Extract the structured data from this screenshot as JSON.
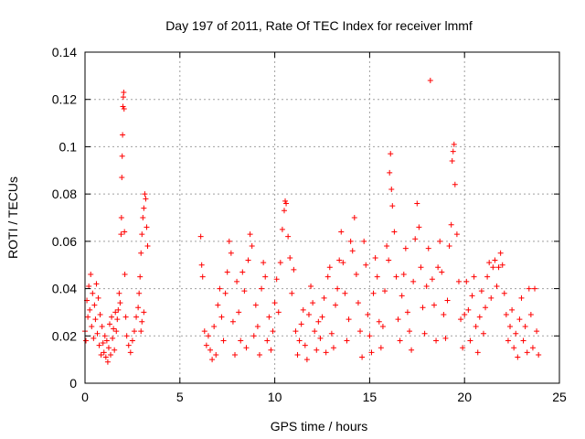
{
  "chart_data": {
    "type": "scatter",
    "title": "Day 197 of 2011, Rate Of TEC Index for receiver lmmf",
    "xlabel": "GPS time / hours",
    "ylabel": "ROTI / TECUs",
    "xlim": [
      0,
      25
    ],
    "ylim": [
      0,
      0.14
    ],
    "xticks": [
      "0",
      "5",
      "10",
      "15",
      "20",
      "25"
    ],
    "yticks": [
      "0",
      "0.02",
      "0.04",
      "0.06",
      "0.08",
      "0.1",
      "0.12",
      "0.14"
    ],
    "grid": true,
    "marker": "+",
    "color": "#ff0000",
    "series": [
      {
        "points": [
          [
            0.0,
            0.022
          ],
          [
            0.05,
            0.018
          ],
          [
            0.1,
            0.035
          ],
          [
            0.15,
            0.028
          ],
          [
            0.2,
            0.041
          ],
          [
            0.25,
            0.031
          ],
          [
            0.3,
            0.046
          ],
          [
            0.35,
            0.024
          ],
          [
            0.4,
            0.038
          ],
          [
            0.45,
            0.019
          ],
          [
            0.5,
            0.033
          ],
          [
            0.55,
            0.027
          ],
          [
            0.6,
            0.042
          ],
          [
            0.65,
            0.021
          ],
          [
            0.7,
            0.036
          ],
          [
            0.75,
            0.016
          ],
          [
            0.8,
            0.029
          ],
          [
            0.85,
            0.012
          ],
          [
            0.9,
            0.024
          ],
          [
            0.95,
            0.017
          ],
          [
            1.0,
            0.013
          ],
          [
            1.05,
            0.02
          ],
          [
            1.1,
            0.011
          ],
          [
            1.15,
            0.018
          ],
          [
            1.2,
            0.009
          ],
          [
            1.25,
            0.015
          ],
          [
            1.3,
            0.025
          ],
          [
            1.35,
            0.012
          ],
          [
            1.4,
            0.028
          ],
          [
            1.45,
            0.019
          ],
          [
            1.5,
            0.023
          ],
          [
            1.55,
            0.014
          ],
          [
            1.6,
            0.03
          ],
          [
            1.65,
            0.022
          ],
          [
            1.7,
            0.027
          ],
          [
            1.75,
            0.031
          ],
          [
            1.8,
            0.038
          ],
          [
            1.85,
            0.034
          ],
          [
            1.9,
            0.063
          ],
          [
            1.92,
            0.07
          ],
          [
            1.94,
            0.087
          ],
          [
            1.96,
            0.096
          ],
          [
            1.98,
            0.105
          ],
          [
            2.0,
            0.117
          ],
          [
            2.02,
            0.121
          ],
          [
            2.04,
            0.123
          ],
          [
            2.06,
            0.116
          ],
          [
            2.08,
            0.064
          ],
          [
            2.1,
            0.046
          ],
          [
            2.15,
            0.028
          ],
          [
            2.2,
            0.02
          ],
          [
            2.3,
            0.016
          ],
          [
            2.4,
            0.013
          ],
          [
            2.5,
            0.018
          ],
          [
            2.6,
            0.022
          ],
          [
            2.7,
            0.028
          ],
          [
            2.8,
            0.032
          ],
          [
            2.85,
            0.038
          ],
          [
            2.9,
            0.045
          ],
          [
            2.95,
            0.055
          ],
          [
            3.0,
            0.063
          ],
          [
            3.05,
            0.07
          ],
          [
            3.1,
            0.074
          ],
          [
            3.15,
            0.08
          ],
          [
            3.2,
            0.078
          ],
          [
            3.25,
            0.066
          ],
          [
            3.3,
            0.058
          ],
          [
            3.0,
            0.026
          ],
          [
            3.1,
            0.03
          ],
          [
            2.95,
            0.022
          ],
          [
            6.1,
            0.062
          ],
          [
            6.15,
            0.05
          ],
          [
            6.2,
            0.045
          ],
          [
            6.3,
            0.022
          ],
          [
            6.4,
            0.016
          ],
          [
            6.5,
            0.02
          ],
          [
            6.6,
            0.014
          ],
          [
            6.7,
            0.01
          ],
          [
            6.8,
            0.024
          ],
          [
            6.9,
            0.012
          ],
          [
            7.0,
            0.033
          ],
          [
            7.1,
            0.04
          ],
          [
            7.2,
            0.028
          ],
          [
            7.3,
            0.018
          ],
          [
            7.4,
            0.038
          ],
          [
            7.5,
            0.047
          ],
          [
            7.6,
            0.06
          ],
          [
            7.7,
            0.055
          ],
          [
            7.8,
            0.026
          ],
          [
            7.9,
            0.012
          ],
          [
            8.0,
            0.043
          ],
          [
            8.1,
            0.03
          ],
          [
            8.2,
            0.018
          ],
          [
            8.3,
            0.047
          ],
          [
            8.4,
            0.039
          ],
          [
            8.5,
            0.015
          ],
          [
            8.6,
            0.052
          ],
          [
            8.7,
            0.063
          ],
          [
            8.8,
            0.058
          ],
          [
            8.9,
            0.02
          ],
          [
            9.0,
            0.033
          ],
          [
            9.1,
            0.024
          ],
          [
            9.2,
            0.012
          ],
          [
            9.3,
            0.04
          ],
          [
            9.4,
            0.051
          ],
          [
            9.5,
            0.045
          ],
          [
            9.6,
            0.018
          ],
          [
            9.7,
            0.028
          ],
          [
            9.8,
            0.014
          ],
          [
            9.9,
            0.022
          ],
          [
            10.0,
            0.034
          ],
          [
            10.1,
            0.044
          ],
          [
            10.2,
            0.03
          ],
          [
            10.3,
            0.051
          ],
          [
            10.4,
            0.065
          ],
          [
            10.5,
            0.073
          ],
          [
            10.55,
            0.077
          ],
          [
            10.6,
            0.076
          ],
          [
            10.7,
            0.062
          ],
          [
            10.8,
            0.053
          ],
          [
            10.9,
            0.038
          ],
          [
            11.0,
            0.048
          ],
          [
            11.1,
            0.022
          ],
          [
            11.2,
            0.012
          ],
          [
            11.3,
            0.018
          ],
          [
            11.4,
            0.025
          ],
          [
            11.5,
            0.031
          ],
          [
            11.6,
            0.016
          ],
          [
            11.7,
            0.01
          ],
          [
            11.8,
            0.029
          ],
          [
            11.9,
            0.041
          ],
          [
            12.0,
            0.034
          ],
          [
            12.1,
            0.022
          ],
          [
            12.2,
            0.014
          ],
          [
            12.3,
            0.026
          ],
          [
            12.4,
            0.019
          ],
          [
            12.5,
            0.028
          ],
          [
            12.6,
            0.036
          ],
          [
            12.7,
            0.013
          ],
          [
            12.8,
            0.045
          ],
          [
            12.9,
            0.049
          ],
          [
            13.0,
            0.021
          ],
          [
            13.1,
            0.015
          ],
          [
            13.2,
            0.033
          ],
          [
            13.3,
            0.04
          ],
          [
            13.4,
            0.052
          ],
          [
            13.5,
            0.064
          ],
          [
            13.6,
            0.051
          ],
          [
            13.7,
            0.038
          ],
          [
            13.8,
            0.018
          ],
          [
            13.9,
            0.027
          ],
          [
            14.0,
            0.06
          ],
          [
            14.1,
            0.056
          ],
          [
            14.2,
            0.07
          ],
          [
            14.3,
            0.046
          ],
          [
            14.4,
            0.034
          ],
          [
            14.5,
            0.022
          ],
          [
            14.6,
            0.011
          ],
          [
            14.7,
            0.06
          ],
          [
            14.8,
            0.05
          ],
          [
            14.9,
            0.029
          ],
          [
            15.0,
            0.02
          ],
          [
            15.1,
            0.013
          ],
          [
            15.2,
            0.038
          ],
          [
            15.3,
            0.053
          ],
          [
            15.4,
            0.045
          ],
          [
            15.5,
            0.026
          ],
          [
            15.6,
            0.015
          ],
          [
            15.7,
            0.024
          ],
          [
            15.8,
            0.039
          ],
          [
            15.9,
            0.058
          ],
          [
            16.0,
            0.052
          ],
          [
            16.05,
            0.089
          ],
          [
            16.1,
            0.097
          ],
          [
            16.15,
            0.082
          ],
          [
            16.2,
            0.075
          ],
          [
            16.3,
            0.064
          ],
          [
            16.4,
            0.045
          ],
          [
            16.5,
            0.027
          ],
          [
            16.6,
            0.018
          ],
          [
            16.7,
            0.037
          ],
          [
            16.8,
            0.046
          ],
          [
            16.9,
            0.057
          ],
          [
            17.0,
            0.03
          ],
          [
            17.1,
            0.022
          ],
          [
            17.2,
            0.014
          ],
          [
            17.3,
            0.043
          ],
          [
            17.4,
            0.061
          ],
          [
            17.5,
            0.076
          ],
          [
            17.6,
            0.066
          ],
          [
            17.7,
            0.049
          ],
          [
            17.8,
            0.032
          ],
          [
            17.9,
            0.021
          ],
          [
            18.0,
            0.041
          ],
          [
            18.1,
            0.057
          ],
          [
            18.2,
            0.128
          ],
          [
            18.3,
            0.044
          ],
          [
            18.4,
            0.033
          ],
          [
            18.5,
            0.018
          ],
          [
            18.6,
            0.049
          ],
          [
            18.7,
            0.06
          ],
          [
            18.8,
            0.047
          ],
          [
            18.9,
            0.029
          ],
          [
            19.0,
            0.019
          ],
          [
            19.1,
            0.035
          ],
          [
            19.2,
            0.058
          ],
          [
            19.3,
            0.067
          ],
          [
            19.35,
            0.094
          ],
          [
            19.4,
            0.098
          ],
          [
            19.45,
            0.101
          ],
          [
            19.5,
            0.084
          ],
          [
            19.6,
            0.063
          ],
          [
            19.7,
            0.043
          ],
          [
            19.8,
            0.027
          ],
          [
            19.9,
            0.015
          ],
          [
            20.0,
            0.029
          ],
          [
            20.1,
            0.043
          ],
          [
            20.2,
            0.031
          ],
          [
            20.3,
            0.018
          ],
          [
            20.4,
            0.037
          ],
          [
            20.5,
            0.045
          ],
          [
            20.6,
            0.024
          ],
          [
            20.7,
            0.013
          ],
          [
            20.8,
            0.028
          ],
          [
            20.9,
            0.039
          ],
          [
            21.0,
            0.021
          ],
          [
            21.1,
            0.032
          ],
          [
            21.2,
            0.045
          ],
          [
            21.3,
            0.051
          ],
          [
            21.4,
            0.036
          ],
          [
            21.5,
            0.049
          ],
          [
            21.6,
            0.052
          ],
          [
            21.7,
            0.041
          ],
          [
            21.8,
            0.049
          ],
          [
            21.9,
            0.055
          ],
          [
            22.0,
            0.05
          ],
          [
            22.1,
            0.038
          ],
          [
            22.2,
            0.029
          ],
          [
            22.3,
            0.018
          ],
          [
            22.4,
            0.024
          ],
          [
            22.5,
            0.031
          ],
          [
            22.6,
            0.015
          ],
          [
            22.7,
            0.021
          ],
          [
            22.8,
            0.011
          ],
          [
            22.9,
            0.027
          ],
          [
            23.0,
            0.036
          ],
          [
            23.1,
            0.018
          ],
          [
            23.2,
            0.024
          ],
          [
            23.3,
            0.013
          ],
          [
            23.4,
            0.04
          ],
          [
            23.5,
            0.029
          ],
          [
            23.6,
            0.015
          ],
          [
            23.7,
            0.04
          ],
          [
            23.8,
            0.022
          ],
          [
            23.9,
            0.012
          ]
        ]
      }
    ]
  }
}
